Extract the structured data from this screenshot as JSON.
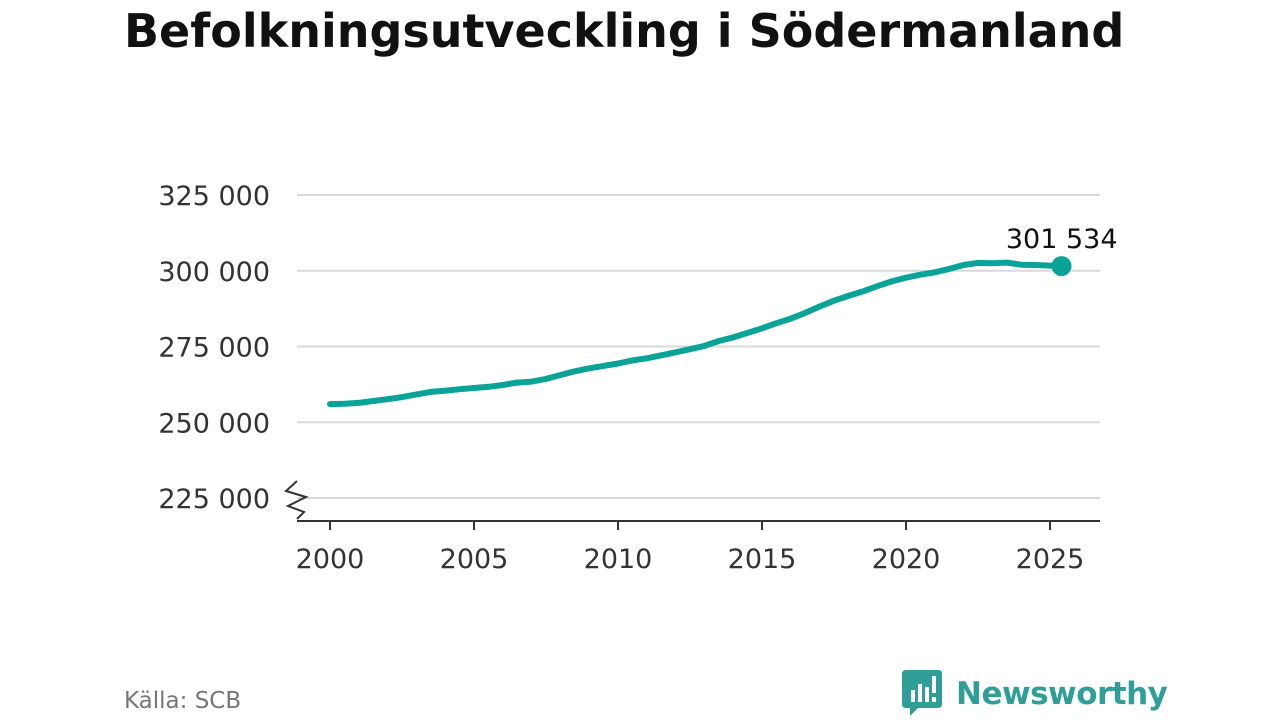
{
  "colors": {
    "line": "#0aa398",
    "grid": "#d9d9d9",
    "axis": "#333333",
    "brand": "#2e9e96"
  },
  "chart_data": {
    "type": "line",
    "title": "Befolkningsutveckling i Södermanland",
    "ylim": [
      220000,
      328000
    ],
    "xlim": [
      2000,
      2025.8
    ],
    "yticks": [
      225000,
      250000,
      275000,
      300000,
      325000
    ],
    "ytick_labels": [
      "225 000",
      "250 000",
      "275 000",
      "300 000",
      "325 000"
    ],
    "xticks": [
      2000,
      2005,
      2010,
      2015,
      2020,
      2025
    ],
    "xtick_labels": [
      "2000",
      "2005",
      "2010",
      "2015",
      "2020",
      "2025"
    ],
    "grid": true,
    "axis_break": true,
    "series": [
      {
        "x": [
          2000.0,
          2000.5,
          2001.0,
          2001.5,
          2002.0,
          2002.5,
          2003.0,
          2003.5,
          2004.0,
          2004.5,
          2005.0,
          2005.5,
          2006.0,
          2006.5,
          2007.0,
          2007.5,
          2008.0,
          2008.5,
          2009.0,
          2009.5,
          2010.0,
          2010.5,
          2011.0,
          2011.5,
          2012.0,
          2012.5,
          2013.0,
          2013.5,
          2014.0,
          2014.5,
          2015.0,
          2015.5,
          2016.0,
          2016.5,
          2017.0,
          2017.5,
          2018.0,
          2018.5,
          2019.0,
          2019.5,
          2020.0,
          2020.5,
          2021.0,
          2021.5,
          2022.0,
          2022.5,
          2023.0,
          2023.5,
          2024.0,
          2024.5,
          2025.0,
          2025.4
        ],
        "values": [
          256000,
          256100,
          256400,
          257000,
          257600,
          258300,
          259200,
          260000,
          260400,
          260900,
          261300,
          261700,
          262300,
          263100,
          263400,
          264300,
          265600,
          266800,
          267800,
          268600,
          269400,
          270400,
          271100,
          272100,
          273100,
          274100,
          275200,
          276800,
          278000,
          279500,
          281000,
          282700,
          284200,
          286100,
          288200,
          290100,
          291700,
          293200,
          294900,
          296500,
          297700,
          298700,
          299500,
          300600,
          301900,
          302600,
          302500,
          302700,
          302000,
          301900,
          301700,
          301534
        ]
      }
    ],
    "end_label": "301 534"
  },
  "footer": {
    "source": "Källa: SCB",
    "brand": "Newsworthy"
  }
}
